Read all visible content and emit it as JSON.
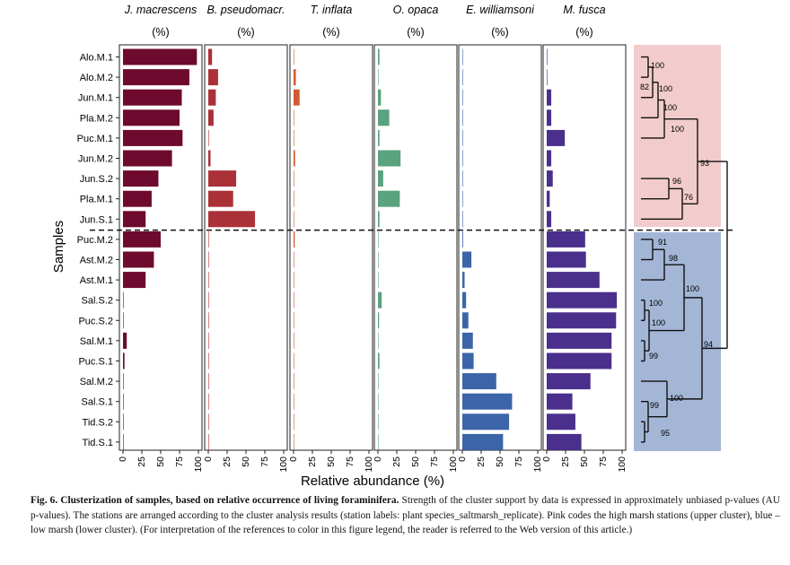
{
  "chart_data": {
    "type": "bar",
    "orientation": "horizontal",
    "facet_by": "species",
    "ylabel": "Samples",
    "xlabel": "Relative abundance (%)",
    "xlim": [
      0,
      100
    ],
    "xticks": [
      "0",
      "25",
      "50",
      "75",
      "100"
    ],
    "unit_label": "(%)",
    "samples": [
      "Alo.M.1",
      "Alo.M.2",
      "Jun.M.1",
      "Pla.M.2",
      "Puc.M.1",
      "Jun.M.2",
      "Jun.S.2",
      "Pla.M.1",
      "Jun.S.1",
      "Puc.M.2",
      "Ast.M.2",
      "Ast.M.1",
      "Sal.S.2",
      "Puc.S.2",
      "Sal.M.1",
      "Puc.S.1",
      "Sal.M.2",
      "Sal.S.1",
      "Tid.S.2",
      "Tid.S.1"
    ],
    "cluster_divider_after_index": 8,
    "series": [
      {
        "name": "J. macrescens",
        "color": "#6e0a2e",
        "values": [
          98,
          88,
          78,
          75,
          79,
          65,
          47,
          38,
          30,
          50,
          41,
          30,
          0.5,
          0.5,
          5,
          2,
          0.5,
          0.5,
          0.5,
          0.5
        ]
      },
      {
        "name": "B. pseudomacr.",
        "color": "#ab3139",
        "values": [
          5,
          13,
          10,
          7,
          0.5,
          3,
          37,
          33,
          62,
          0.5,
          0.5,
          0.5,
          0.5,
          0.5,
          0.5,
          0.5,
          0.5,
          0.5,
          0.5,
          0.5
        ]
      },
      {
        "name": "T. inflata",
        "color": "#d05a30",
        "values": [
          0.5,
          3,
          8,
          0.5,
          0.5,
          2,
          0.5,
          0.5,
          0.5,
          1.5,
          0.5,
          0.5,
          0.5,
          0.5,
          0.5,
          0.5,
          0.5,
          0.5,
          0.5,
          0.5
        ]
      },
      {
        "name": "O. opaca",
        "color": "#5aa37e",
        "values": [
          2,
          0.5,
          4,
          15,
          2,
          30,
          7,
          29,
          2,
          0.5,
          0.5,
          0.5,
          5,
          1.5,
          0.5,
          2,
          0.5,
          0.5,
          0.5,
          0.5
        ]
      },
      {
        "name": "E. williamsoni",
        "color": "#3b65a8",
        "values": [
          0.5,
          0.5,
          0.5,
          0.5,
          0.5,
          0.5,
          0.5,
          0.5,
          0.5,
          1,
          12,
          3,
          5,
          8,
          14,
          15,
          45,
          66,
          62,
          54
        ]
      },
      {
        "name": "M. fusca",
        "color": "#4b2f8c",
        "values": [
          0.5,
          0.5,
          6,
          6,
          24,
          6,
          8,
          4,
          6,
          51,
          52,
          70,
          93,
          92,
          86,
          86,
          58,
          34,
          38,
          46
        ]
      }
    ],
    "dendrogram": {
      "clusters": [
        {
          "name": "high marsh",
          "color": "#f2cccc"
        },
        {
          "name": "low marsh",
          "color": "#a4b6d6"
        }
      ],
      "au_values": [
        "100",
        "82",
        "100",
        "100",
        "100",
        "93",
        "96",
        "76",
        "91",
        "98",
        "100",
        "100",
        "100",
        "99",
        "94",
        "100",
        "99",
        "95"
      ]
    }
  },
  "caption": {
    "label": "Fig. 6.",
    "bold_text": "Clusterization of samples, based on relative occurrence of living foraminifera.",
    "text": " Strength of the cluster support by data is expressed in approximately unbiased p-values (AU p-values). The stations are arranged according to the cluster analysis results (station labels: plant species_saltmarsh_replicate). Pink codes the high marsh stations (upper cluster), blue – low marsh (lower cluster). (For interpretation of the references to color in this figure legend, the reader is referred to the Web version of this article.)"
  }
}
